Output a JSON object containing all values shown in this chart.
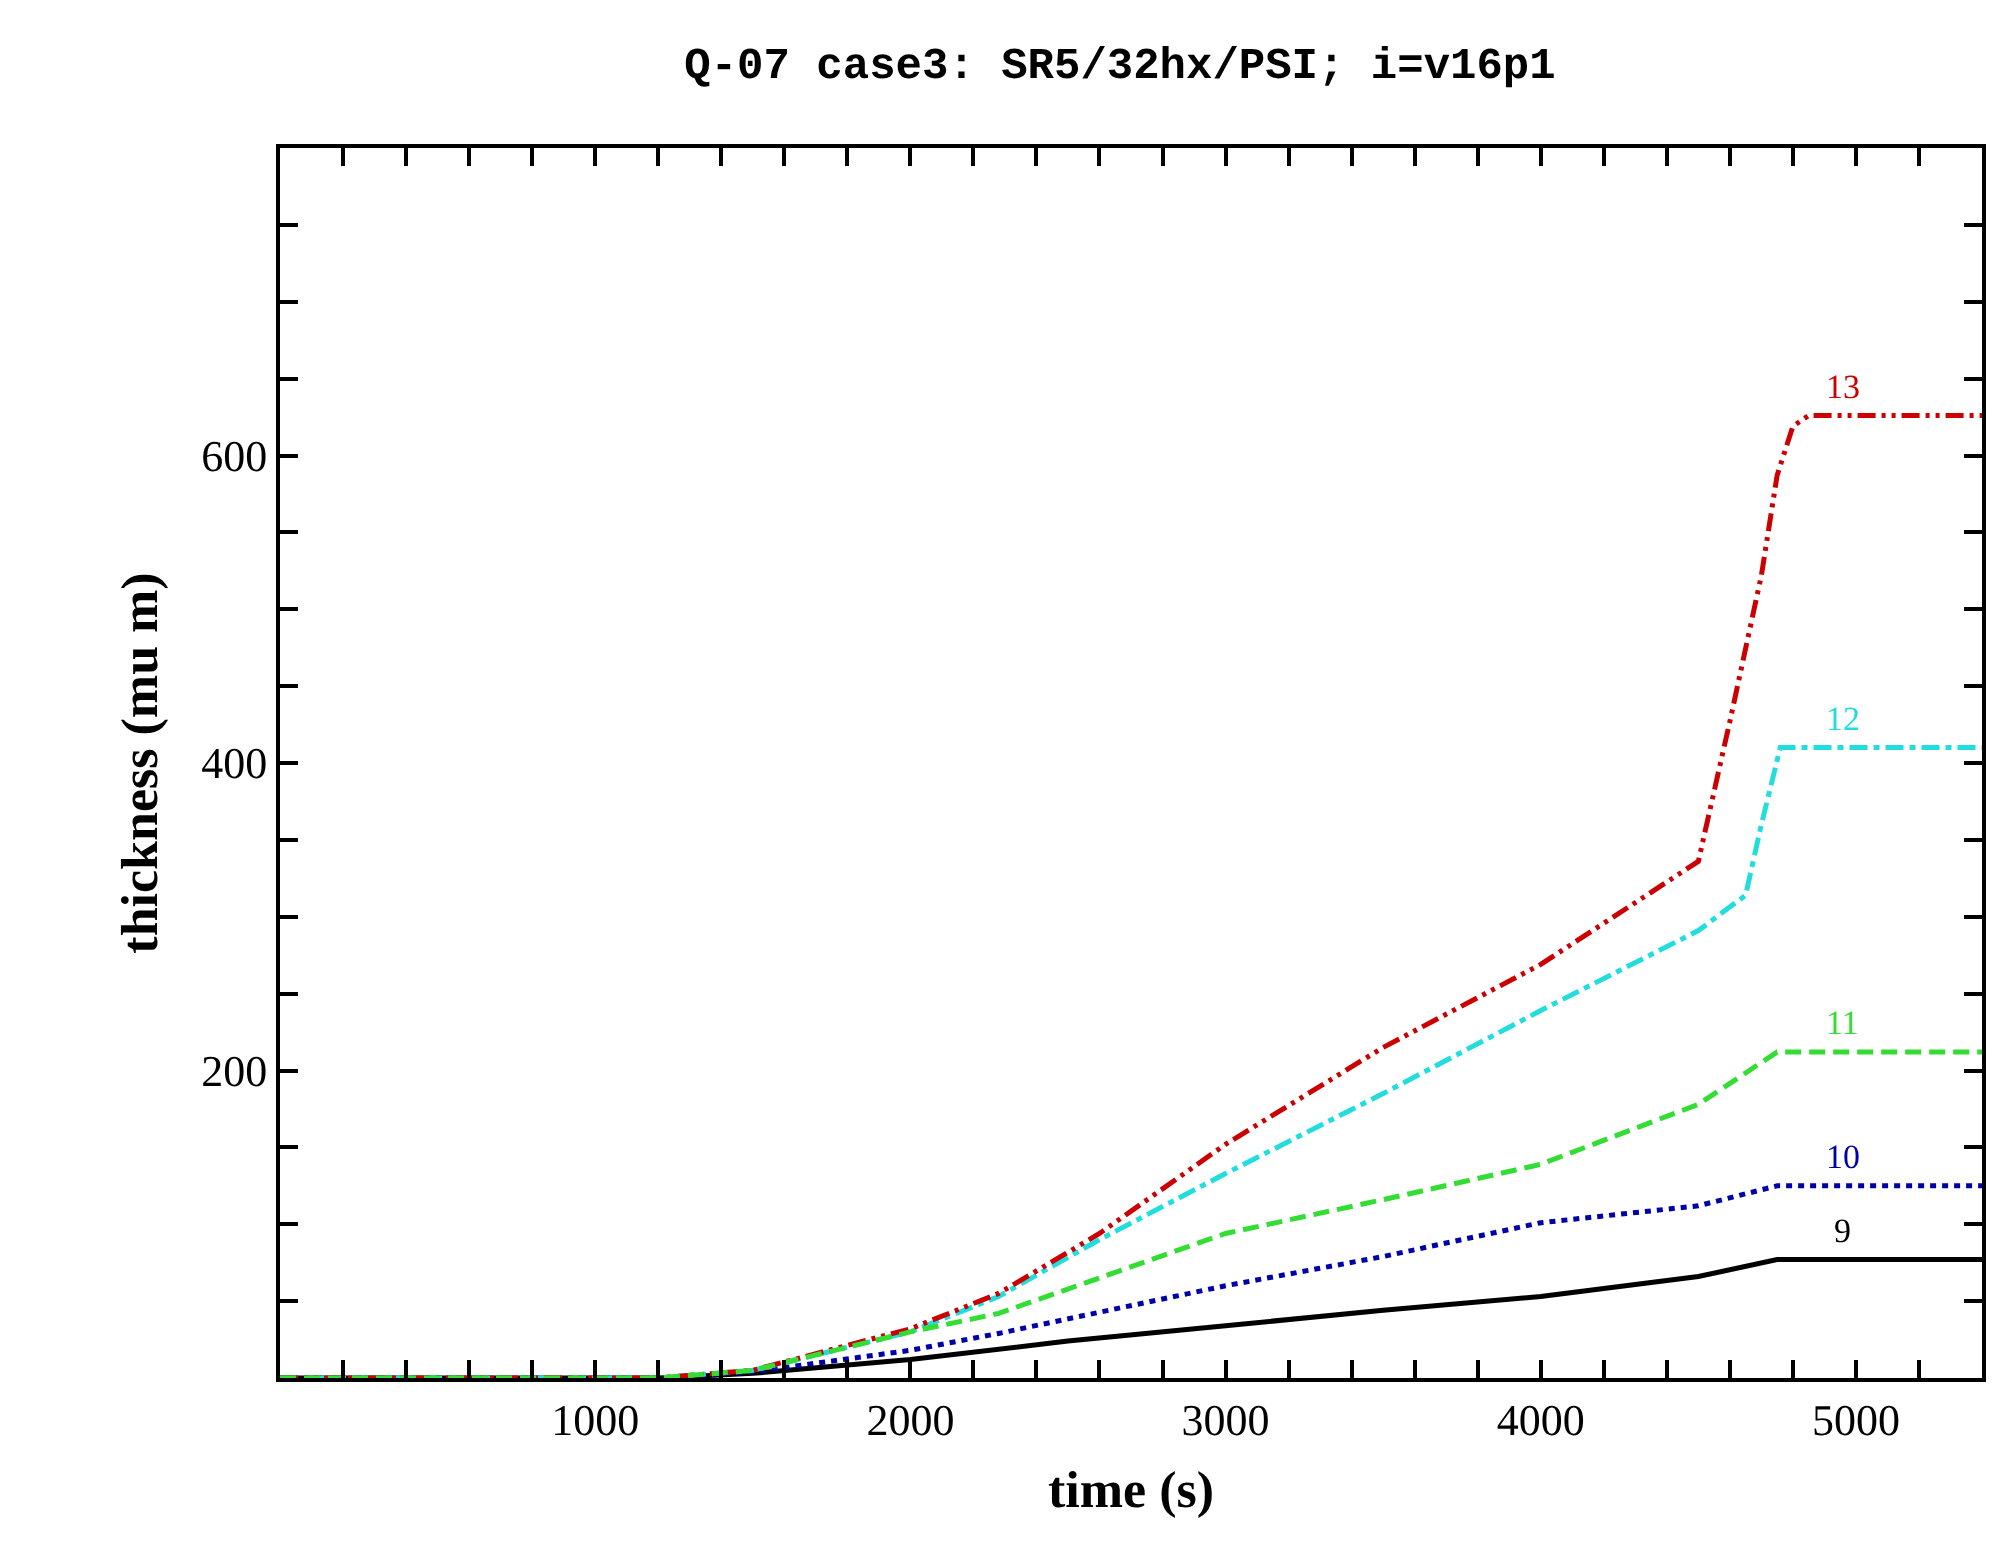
{
  "chart_data": {
    "type": "line",
    "title": "Q-07 case3: SR5/32hx/PSI; i=v16p1",
    "xlabel": "time (s)",
    "ylabel": "thickness (mu m)",
    "xlim": [
      0,
      5400
    ],
    "ylim": [
      0,
      800
    ],
    "xticks": [
      {
        "value": 200,
        "label": null
      },
      {
        "value": 400,
        "label": null
      },
      {
        "value": 600,
        "label": null
      },
      {
        "value": 800,
        "label": null
      },
      1000,
      {
        "value": 1200,
        "label": null
      },
      {
        "value": 1400,
        "label": null
      },
      {
        "value": 1600,
        "label": null
      },
      {
        "value": 1800,
        "label": null
      },
      2000,
      {
        "value": 2200,
        "label": null
      },
      {
        "value": 2400,
        "label": null
      },
      {
        "value": 2600,
        "label": null
      },
      {
        "value": 2800,
        "label": null
      },
      3000,
      {
        "value": 3200,
        "label": null
      },
      {
        "value": 3400,
        "label": null
      },
      {
        "value": 3600,
        "label": null
      },
      {
        "value": 3800,
        "label": null
      },
      4000,
      {
        "value": 4200,
        "label": null
      },
      {
        "value": 4400,
        "label": null
      },
      {
        "value": 4600,
        "label": null
      },
      {
        "value": 4800,
        "label": null
      },
      5000,
      {
        "value": 5200,
        "label": null
      }
    ],
    "yticks": [
      {
        "value": 50,
        "label": null
      },
      {
        "value": 100,
        "label": null
      },
      {
        "value": 150,
        "label": null
      },
      200,
      {
        "value": 250,
        "label": null
      },
      {
        "value": 300,
        "label": null
      },
      {
        "value": 350,
        "label": null
      },
      400,
      {
        "value": 450,
        "label": null
      },
      {
        "value": 500,
        "label": null
      },
      {
        "value": 550,
        "label": null
      },
      600,
      {
        "value": 650,
        "label": null
      },
      {
        "value": 700,
        "label": null
      },
      {
        "value": 750,
        "label": null
      }
    ],
    "legend": false,
    "marker": "none",
    "series": [
      {
        "name": "9",
        "color": "#000000",
        "line_style": "solid",
        "x": [
          0,
          1200,
          1500,
          2000,
          2500,
          3000,
          3500,
          4000,
          4500,
          4750,
          5400
        ],
        "values": [
          0,
          0,
          3,
          12,
          24,
          34,
          44,
          53,
          66,
          77,
          77
        ]
      },
      {
        "name": "10",
        "color": "#0000aa",
        "line_style": "dotted",
        "x": [
          0,
          1200,
          1500,
          2000,
          2280,
          3000,
          3500,
          4000,
          4500,
          4750,
          5400
        ],
        "values": [
          0,
          0,
          4,
          18,
          29,
          60,
          79,
          101,
          112,
          125,
          125
        ]
      },
      {
        "name": "12",
        "color": "#22dddd",
        "line_style": "dashdot",
        "x": [
          0,
          1200,
          1500,
          2000,
          2280,
          2600,
          3000,
          3500,
          4000,
          4500,
          4650,
          4700,
          4760,
          5400
        ],
        "values": [
          0,
          0,
          5,
          30,
          53,
          90,
          133,
          185,
          239,
          291,
          314,
          360,
          410,
          410
        ]
      },
      {
        "name": "13",
        "color": "#cc0000",
        "line_style": "dashdotdot",
        "x": [
          0,
          1200,
          1500,
          2000,
          2280,
          2600,
          3000,
          3500,
          4000,
          4500,
          4600,
          4700,
          4750,
          4800,
          4850,
          5400
        ],
        "values": [
          0,
          0,
          5,
          32,
          55,
          94,
          152,
          215,
          269,
          336,
          427,
          522,
          587,
          619,
          626,
          626
        ]
      },
      {
        "name": "11",
        "color": "#33dd33",
        "line_style": "dashed",
        "x": [
          0,
          1200,
          1500,
          2000,
          2280,
          3000,
          3500,
          4000,
          4500,
          4750,
          5400
        ],
        "values": [
          0,
          0,
          5,
          30,
          42,
          94,
          116,
          139,
          178,
          212,
          212
        ]
      }
    ]
  }
}
